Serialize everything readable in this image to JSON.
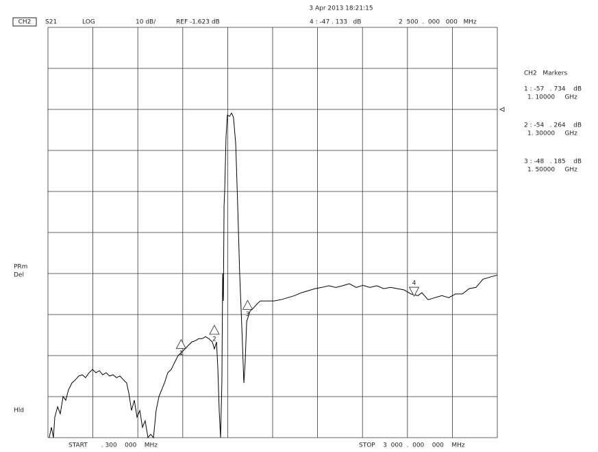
{
  "screen": {
    "timestamp": "3 Apr 2013 18:21:15",
    "channel": "CH2",
    "parameter": "S21",
    "format": "LOG",
    "scale": "10 dB/",
    "reference": "REF -1.623 dB",
    "active_marker": "4 : -47 . 133   dB",
    "active_marker_stimulus": "2  500  .  000   000   MHz",
    "status": [
      "PRm",
      "Del"
    ],
    "hold": "Hld",
    "start": "START       . 300    000    MHz",
    "stop": "STOP    3  000  .  000    000    MHz"
  },
  "marker_panel": {
    "title": "CH2   Markers",
    "readouts": [
      [
        "1 : -57   . 734    dB",
        "1. 10000     GHz"
      ],
      [
        "2 : -54   . 264    dB",
        "1. 30000     GHz"
      ],
      [
        "3 : -48   . 185    dB",
        "1. 50000     GHz"
      ]
    ]
  },
  "chart_data": {
    "type": "line",
    "color": "#000000",
    "x": [
      308,
      321,
      333,
      341,
      358,
      374,
      391,
      407,
      423,
      444,
      465,
      485,
      506,
      526,
      547,
      568,
      588,
      609,
      629,
      650,
      670,
      691,
      712,
      732,
      753,
      773,
      786,
      802,
      819,
      835,
      852,
      868,
      884,
      901,
      917,
      934,
      942,
      950,
      967,
      983,
      1000,
      1020,
      1041,
      1061,
      1082,
      1103,
      1123,
      1144,
      1164,
      1185,
      1206,
      1226,
      1247,
      1267,
      1288,
      1300,
      1313,
      1321,
      1329,
      1337,
      1345,
      1350,
      1354,
      1358,
      1362,
      1370,
      1378,
      1391,
      1403,
      1415,
      1428,
      1440,
      1452,
      1465,
      1477,
      1485,
      1494,
      1514,
      1535,
      1555,
      1576,
      1617,
      1658,
      1699,
      1741,
      1782,
      1823,
      1864,
      1905,
      1946,
      1988,
      2029,
      2070,
      2111,
      2152,
      2193,
      2235,
      2276,
      2317,
      2358,
      2399,
      2440,
      2481,
      2523,
      2547,
      2584,
      2625,
      2667,
      2708,
      2749,
      2790,
      2831,
      2872,
      2914,
      2955,
      3000
    ],
    "values": [
      -81.6,
      -79.1,
      -81.6,
      -76.6,
      -74.1,
      -75.8,
      -71.6,
      -72.5,
      -70,
      -68.3,
      -67.5,
      -66.6,
      -66.3,
      -67,
      -65.8,
      -65,
      -65.8,
      -65.3,
      -66.3,
      -65.8,
      -66.6,
      -66.3,
      -67,
      -66.6,
      -67.5,
      -68.3,
      -70.8,
      -75,
      -72.5,
      -76.6,
      -75,
      -79.1,
      -77.5,
      -81.6,
      -80.8,
      -81.6,
      -78.3,
      -75,
      -71.6,
      -70,
      -68.3,
      -65.8,
      -65,
      -63.3,
      -61.6,
      -60.8,
      -60,
      -59.1,
      -58.3,
      -58,
      -57.5,
      -57.5,
      -57,
      -57.5,
      -58.3,
      -60,
      -58.3,
      -65,
      -75,
      -81.6,
      -68.3,
      -41.6,
      -48.3,
      -25,
      -21.6,
      -8.3,
      -3,
      -3.3,
      -2.5,
      -3.6,
      -10,
      -25,
      -41.6,
      -55,
      -68.3,
      -63.3,
      -53.3,
      -50.8,
      -50,
      -49.1,
      -48.3,
      -48.3,
      -48.3,
      -48,
      -47.5,
      -47,
      -46.3,
      -45.8,
      -45.3,
      -45,
      -44.6,
      -45,
      -44.6,
      -44.1,
      -45,
      -44.5,
      -45,
      -44.6,
      -45.3,
      -45,
      -45.3,
      -45.6,
      -46.6,
      -47,
      -46.3,
      -48,
      -47.5,
      -47,
      -47.5,
      -46.6,
      -46.6,
      -45.3,
      -45,
      -43,
      -42.5,
      -42
    ],
    "xlim": [
      300,
      3000
    ],
    "ylim": [
      -81.623,
      18.377
    ],
    "xticks": [
      300,
      570,
      840,
      1110,
      1380,
      1650,
      1920,
      2190,
      2460,
      2730,
      3000
    ],
    "yticks": [
      18.377,
      8.377,
      -1.623,
      -11.623,
      -21.623,
      -31.623,
      -41.623,
      -51.623,
      -61.623,
      -71.623,
      -81.623
    ],
    "grid": true,
    "reference_level": -1.623,
    "markers": [
      {
        "label": "1",
        "x": 1100,
        "y": -57.734
      },
      {
        "label": "2",
        "x": 1300,
        "y": -54.264
      },
      {
        "label": "3",
        "x": 1500,
        "y": -48.185
      },
      {
        "label": "4",
        "x": 2500,
        "y": -47.133
      }
    ]
  }
}
